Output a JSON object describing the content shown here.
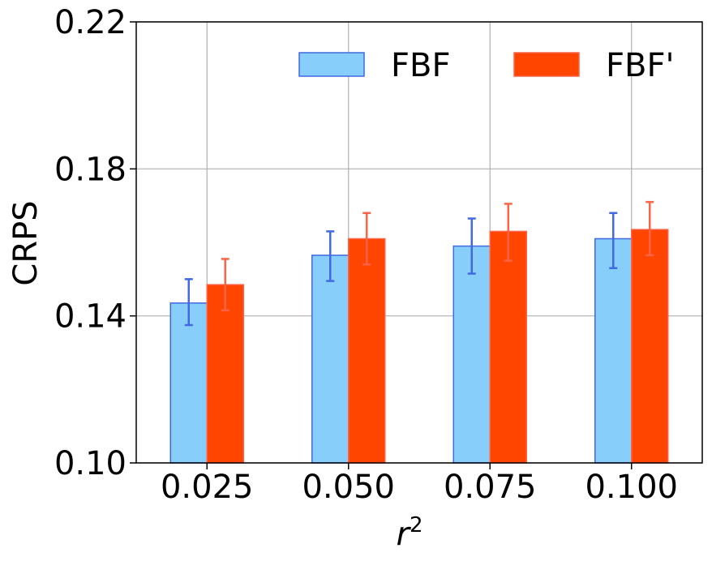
{
  "chart_data": {
    "type": "bar",
    "title": "",
    "xlabel_base": "r",
    "xlabel_sup": "2",
    "ylabel": "CRPS",
    "ylim": [
      0.1,
      0.22
    ],
    "yticks": [
      "0.10",
      "0.14",
      "0.18",
      "0.22"
    ],
    "ytick_values": [
      0.1,
      0.14,
      0.18,
      0.22
    ],
    "categories": [
      "0.025",
      "0.050",
      "0.075",
      "0.100"
    ],
    "grid": true,
    "legend_position": "top-right",
    "series": [
      {
        "name": "FBF",
        "values": [
          0.1435,
          0.1565,
          0.159,
          0.161
        ],
        "err_low": [
          0.1375,
          0.1495,
          0.1515,
          0.153
        ],
        "err_high": [
          0.15,
          0.163,
          0.1665,
          0.168
        ],
        "fill": "#87CEFA",
        "edge": "#4169E1",
        "err_color": "#4169E1"
      },
      {
        "name": "FBF'",
        "values": [
          0.1485,
          0.161,
          0.163,
          0.1635
        ],
        "err_low": [
          0.1415,
          0.154,
          0.155,
          0.1565
        ],
        "err_high": [
          0.1555,
          0.168,
          0.1705,
          0.171
        ],
        "fill": "#FF4500",
        "edge": "#FF6347",
        "err_color": "#FF6347"
      }
    ]
  }
}
